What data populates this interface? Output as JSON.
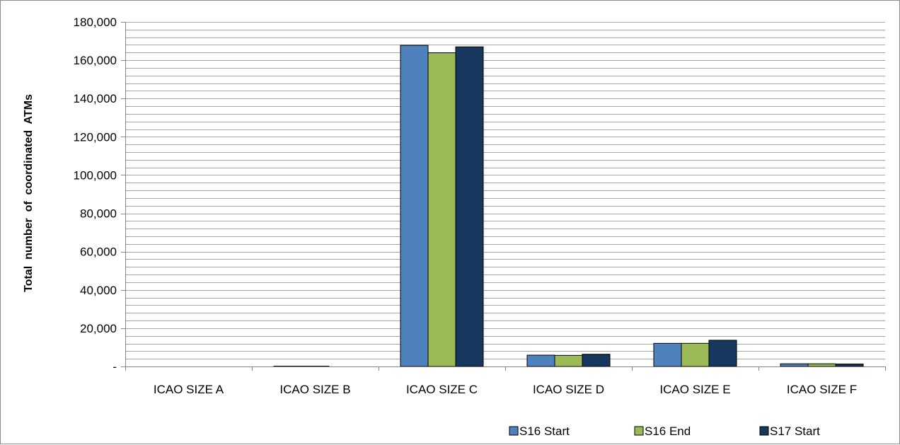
{
  "chart_data": {
    "type": "bar",
    "categories": [
      "ICAO SIZE A",
      "ICAO SIZE B",
      "ICAO SIZE C",
      "ICAO SIZE D",
      "ICAO SIZE E",
      "ICAO SIZE F"
    ],
    "series": [
      {
        "name": "S16 Start",
        "color": "#4f81bd",
        "values": [
          0,
          150,
          167800,
          5900,
          12100,
          1400
        ]
      },
      {
        "name": "S16 End",
        "color": "#9bbb59",
        "values": [
          0,
          150,
          163900,
          5800,
          12100,
          1400
        ]
      },
      {
        "name": "S17 Start",
        "color": "#17375e",
        "values": [
          0,
          0,
          167000,
          6400,
          13700,
          1300
        ]
      }
    ],
    "ylabel": "Total  number  of  coordinated  ATMs",
    "xlabel": "",
    "ylim": [
      0,
      180000
    ],
    "ytick_step": 20000,
    "yticks": [
      "-",
      "20,000",
      "40,000",
      "60,000",
      "80,000",
      "100,000",
      "120,000",
      "140,000",
      "160,000",
      "180,000"
    ],
    "grid": "horizontal-major-and-minor",
    "legend_position": "bottom-right"
  }
}
